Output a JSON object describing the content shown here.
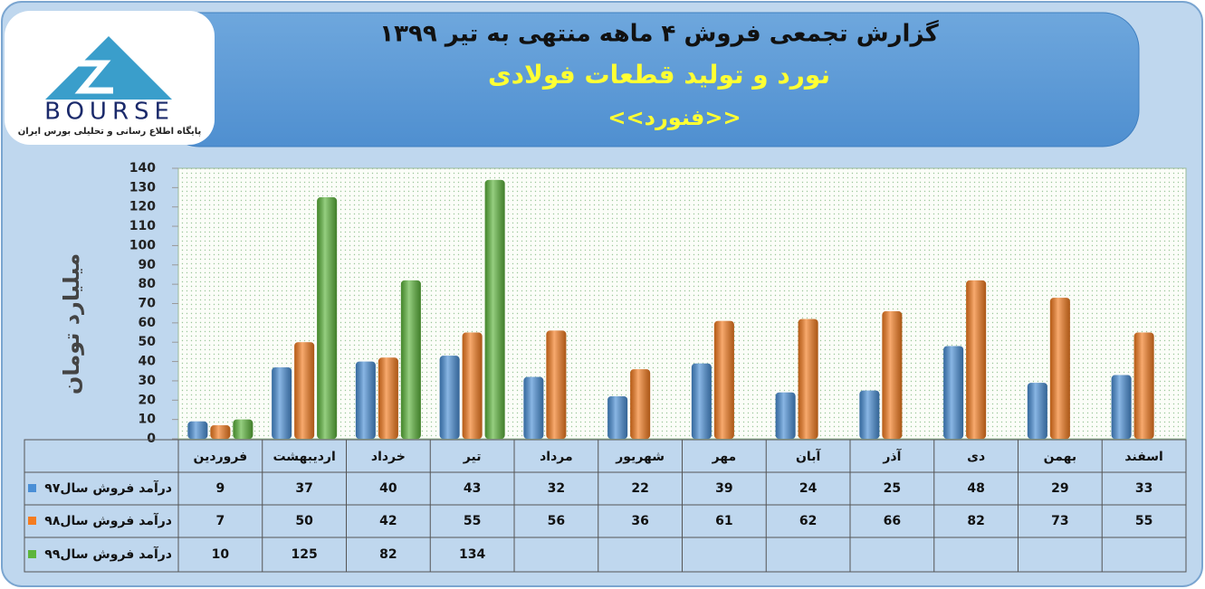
{
  "logo": {
    "name": "BOURSE",
    "tagline": "پایگاه اطلاع رسانی و تحلیلی بورس ایران"
  },
  "chart_data": {
    "type": "bar",
    "title": "گزارش تجمعی فروش ۴ ماهه منتهی به تیر ۱۳۹۹",
    "subtitle": "نورد و تولید قطعات فولادی",
    "company": "<<فنورد>>",
    "y_label": "میلیارد تومان",
    "categories": [
      "فروردین",
      "اردیبهشت",
      "خرداد",
      "تیر",
      "مرداد",
      "شهریور",
      "مهر",
      "آبان",
      "آذر",
      "دی",
      "بهمن",
      "اسفند"
    ],
    "series": [
      {
        "name": "درآمد فروش سال۹۷",
        "color": "#4a8fd6",
        "values": [
          9,
          37,
          40,
          43,
          32,
          22,
          39,
          24,
          25,
          48,
          29,
          33
        ]
      },
      {
        "name": "درآمد فروش سال۹۸",
        "color": "#f47c20",
        "values": [
          7,
          50,
          42,
          55,
          56,
          36,
          61,
          62,
          66,
          82,
          73,
          55
        ]
      },
      {
        "name": "درآمد فروش سال۹۹",
        "color": "#5db53c",
        "values": [
          10,
          125,
          82,
          134,
          null,
          null,
          null,
          null,
          null,
          null,
          null,
          null
        ]
      }
    ],
    "ylim": [
      0,
      140
    ],
    "yticks": [
      0,
      10,
      20,
      30,
      40,
      50,
      60,
      70,
      80,
      90,
      100,
      110,
      120,
      130,
      140
    ],
    "grid": false
  }
}
